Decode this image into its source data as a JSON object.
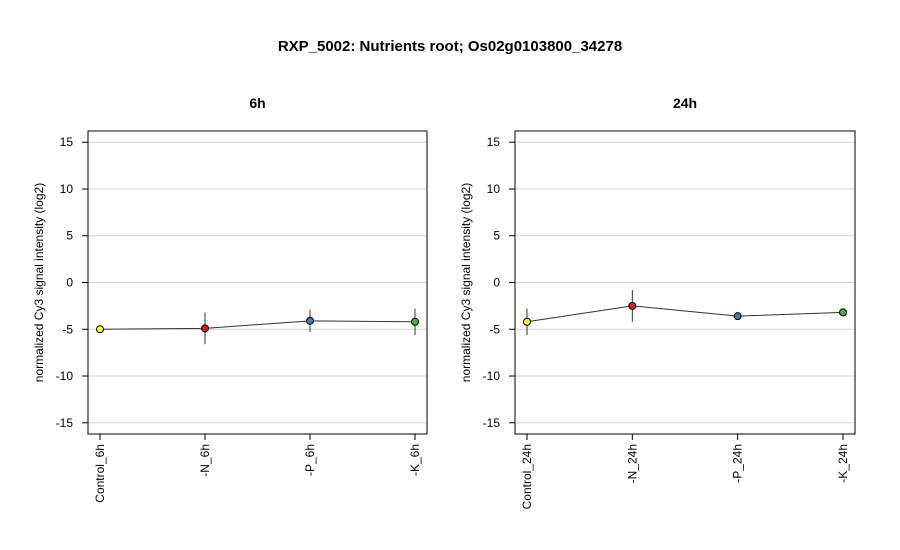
{
  "figure": {
    "title": "RXP_5002: Nutrients root; Os02g0103800_34278"
  },
  "chart_data": [
    {
      "type": "line",
      "title": "6h",
      "xlabel": "",
      "ylabel": "normalized Cy3 signal intensity (log2)",
      "categories": [
        "Control_6h",
        "-N_6h",
        "-P_6h",
        "-K_6h"
      ],
      "yticks": [
        15,
        10,
        5,
        0,
        -5,
        -10,
        -15
      ],
      "ylim": [
        -16.2,
        16.2
      ],
      "grid": true,
      "series": [
        {
          "values": [
            -5.0,
            -4.9,
            -4.1,
            -4.2
          ],
          "errors": [
            0.0,
            1.7,
            1.2,
            1.4
          ],
          "colors": [
            "#ffff33",
            "#e41a1c",
            "#377eb8",
            "#4daf4a"
          ]
        }
      ]
    },
    {
      "type": "line",
      "title": "24h",
      "xlabel": "",
      "ylabel": "normalized Cy3 signal intensity (log2)",
      "categories": [
        "Control_24h",
        "-N_24h",
        "-P_24h",
        "-K_24h"
      ],
      "yticks": [
        15,
        10,
        5,
        0,
        -5,
        -10,
        -15
      ],
      "ylim": [
        -16.2,
        16.2
      ],
      "grid": true,
      "series": [
        {
          "values": [
            -4.2,
            -2.5,
            -3.6,
            -3.2
          ],
          "errors": [
            1.4,
            1.7,
            0.0,
            0.0
          ],
          "colors": [
            "#ffff33",
            "#e41a1c",
            "#377eb8",
            "#4daf4a"
          ]
        }
      ]
    }
  ]
}
